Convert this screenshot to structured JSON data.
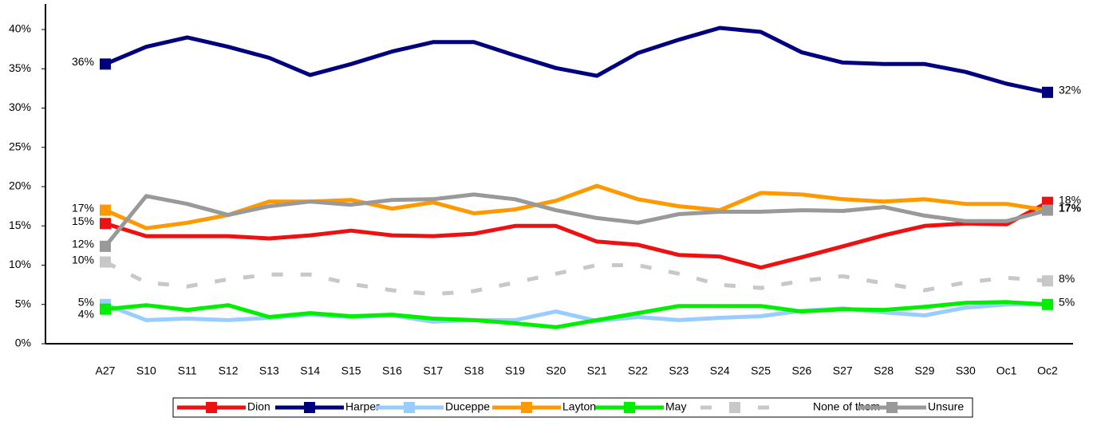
{
  "chart_data": {
    "type": "line",
    "categories": [
      "A27",
      "S10",
      "S11",
      "S12",
      "S13",
      "S14",
      "S15",
      "S16",
      "S17",
      "S18",
      "S19",
      "S20",
      "S21",
      "S22",
      "S23",
      "S24",
      "S25",
      "S26",
      "S27",
      "S28",
      "S29",
      "S30",
      "Oc1",
      "Oc2"
    ],
    "ylim": [
      0,
      40
    ],
    "yticks": [
      {
        "value": 0,
        "label": "0%"
      },
      {
        "value": 5,
        "label": "5%"
      },
      {
        "value": 10,
        "label": "10%"
      },
      {
        "value": 15,
        "label": "15%"
      },
      {
        "value": 20,
        "label": "20%"
      },
      {
        "value": 25,
        "label": "25%"
      },
      {
        "value": 30,
        "label": "30%"
      },
      {
        "value": 35,
        "label": "35%"
      },
      {
        "value": 40,
        "label": "40%"
      }
    ],
    "legend": "bottom",
    "series": [
      {
        "name": "Dion",
        "color": "#ee1111",
        "values": [
          15.3,
          13.7,
          13.7,
          13.7,
          13.4,
          13.8,
          14.4,
          13.8,
          13.7,
          14,
          15,
          15,
          13,
          12.6,
          11.3,
          11.1,
          9.7,
          11,
          12.4,
          13.8,
          15,
          15.3,
          15.2,
          18
        ],
        "value_labels": [
          "15%",
          null,
          null,
          null,
          null,
          null,
          null,
          null,
          null,
          null,
          null,
          null,
          null,
          null,
          null,
          null,
          null,
          null,
          null,
          null,
          null,
          null,
          null,
          "18%"
        ]
      },
      {
        "name": "Harper",
        "color": "#00007f",
        "values": [
          35.6,
          37.8,
          39,
          37.8,
          36.4,
          34.2,
          35.6,
          37.2,
          38.4,
          38.4,
          36.7,
          35.1,
          34.1,
          37,
          38.7,
          40.2,
          39.7,
          37.1,
          35.8,
          35.6,
          35.6,
          34.6,
          33.1,
          32
        ],
        "value_labels": [
          "36%",
          null,
          null,
          null,
          null,
          null,
          null,
          null,
          null,
          null,
          null,
          null,
          null,
          null,
          null,
          null,
          null,
          null,
          null,
          null,
          null,
          null,
          null,
          "32%"
        ]
      },
      {
        "name": "Duceppe",
        "color": "#99ccff",
        "values": [
          5,
          3,
          3.2,
          3,
          3.3,
          3.7,
          3.4,
          3.6,
          2.8,
          3,
          3,
          4.1,
          2.9,
          3.4,
          3,
          3.3,
          3.5,
          4.2,
          4.5,
          4,
          3.6,
          4.6,
          5,
          5
        ],
        "value_labels": [
          "5%",
          null,
          null,
          null,
          null,
          null,
          null,
          null,
          null,
          null,
          null,
          null,
          null,
          null,
          null,
          null,
          null,
          null,
          null,
          null,
          null,
          null,
          null,
          null
        ]
      },
      {
        "name": "Layton",
        "color": "#ff9900",
        "values": [
          17,
          14.7,
          15.4,
          16.4,
          18.1,
          18.1,
          18.3,
          17.2,
          18,
          16.6,
          17.1,
          18.2,
          20.1,
          18.4,
          17.5,
          17,
          19.2,
          19,
          18.4,
          18.1,
          18.4,
          17.8,
          17.8,
          17
        ],
        "value_labels": [
          "17%",
          null,
          null,
          null,
          null,
          null,
          null,
          null,
          null,
          null,
          null,
          null,
          null,
          null,
          null,
          null,
          null,
          null,
          null,
          null,
          null,
          null,
          null,
          null
        ]
      },
      {
        "name": "May",
        "color": "#00ee00",
        "values": [
          4.4,
          4.9,
          4.3,
          4.9,
          3.4,
          3.9,
          3.5,
          3.7,
          3.2,
          3,
          2.6,
          2.1,
          3,
          3.9,
          4.8,
          4.8,
          4.8,
          4.1,
          4.4,
          4.3,
          4.7,
          5.2,
          5.3,
          5
        ],
        "value_labels": [
          "4%",
          null,
          null,
          null,
          null,
          null,
          null,
          null,
          null,
          null,
          null,
          null,
          null,
          null,
          null,
          null,
          null,
          null,
          null,
          null,
          null,
          null,
          null,
          "5%"
        ]
      },
      {
        "name": "None of them",
        "color": "#c8c8c8",
        "dashed": true,
        "values": [
          10.4,
          7.8,
          7.3,
          8.2,
          8.8,
          8.8,
          7.6,
          6.8,
          6.3,
          6.7,
          7.8,
          8.9,
          10,
          10,
          8.9,
          7.5,
          7.1,
          8,
          8.6,
          7.7,
          6.8,
          7.8,
          8.4,
          8
        ],
        "value_labels": [
          "10%",
          null,
          null,
          null,
          null,
          null,
          null,
          null,
          null,
          null,
          null,
          null,
          null,
          null,
          null,
          null,
          null,
          null,
          null,
          null,
          null,
          null,
          null,
          "8%"
        ]
      },
      {
        "name": "Unsure",
        "color": "#999999",
        "bold_end_label": true,
        "values": [
          12.4,
          18.8,
          17.8,
          16.4,
          17.5,
          18.1,
          17.7,
          18.3,
          18.4,
          19,
          18.4,
          17,
          16,
          15.4,
          16.5,
          16.8,
          16.8,
          17,
          16.9,
          17.4,
          16.3,
          15.6,
          15.6,
          17
        ],
        "value_labels": [
          "12%",
          null,
          null,
          null,
          null,
          null,
          null,
          null,
          null,
          null,
          null,
          null,
          null,
          null,
          null,
          null,
          null,
          null,
          null,
          null,
          null,
          null,
          null,
          "17%"
        ]
      }
    ]
  }
}
